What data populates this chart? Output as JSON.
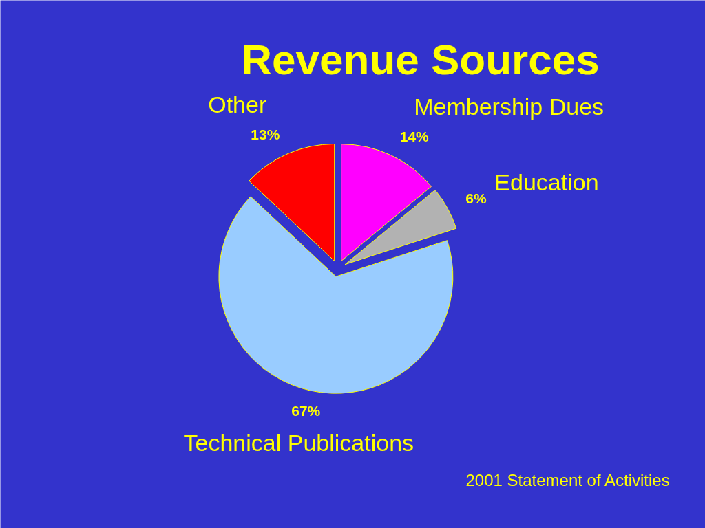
{
  "chart_data": {
    "type": "pie",
    "title": "Revenue Sources",
    "categories": [
      "Membership Dues",
      "Education",
      "Technical Publications",
      "Other"
    ],
    "values": [
      14,
      6,
      67,
      13
    ],
    "value_labels": [
      "14%",
      "6%",
      "67%",
      "13%"
    ],
    "colors": [
      "#ff00ff",
      "#b2b2b2",
      "#99ccff",
      "#ff0000"
    ],
    "annotations": [
      "2001 Statement of Activities"
    ]
  }
}
